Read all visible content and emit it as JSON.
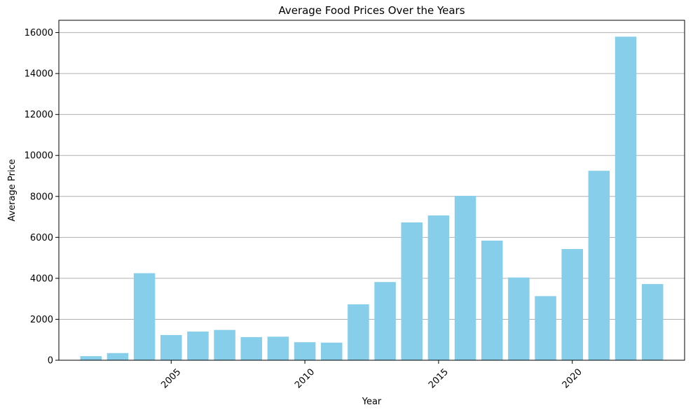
{
  "chart_data": {
    "type": "bar",
    "title": "Average Food Prices Over the Years",
    "xlabel": "Year",
    "ylabel": "Average Price",
    "x": [
      2002,
      2003,
      2004,
      2005,
      2006,
      2007,
      2008,
      2009,
      2010,
      2011,
      2012,
      2013,
      2014,
      2015,
      2016,
      2017,
      2018,
      2019,
      2020,
      2021,
      2022,
      2023
    ],
    "values": [
      200,
      350,
      4250,
      1230,
      1400,
      1480,
      1130,
      1150,
      880,
      860,
      2730,
      3820,
      6730,
      7070,
      8030,
      5840,
      4040,
      3130,
      5430,
      9250,
      15800,
      3720
    ],
    "xlim": [
      2000.8,
      2024.2
    ],
    "ylim": [
      0,
      16600
    ],
    "xticks": [
      2005,
      2010,
      2015,
      2020
    ],
    "yticks": [
      0,
      2000,
      4000,
      6000,
      8000,
      10000,
      12000,
      14000,
      16000
    ],
    "xtick_rotation": 45,
    "grid": "y-major",
    "bar_color": "#87ceeb",
    "grid_color": "#b0b0b0",
    "axis_color": "#000000"
  }
}
